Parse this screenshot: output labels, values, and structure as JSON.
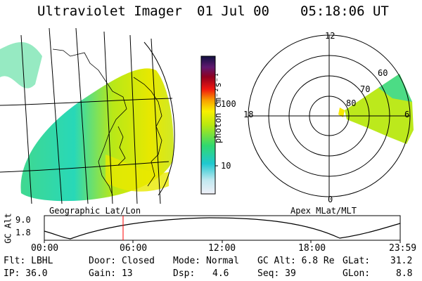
{
  "header": {
    "instrument": "Ultraviolet Imager",
    "date": "01 Jul 00",
    "time": "05:18:06 UT"
  },
  "colorbar": {
    "unit_label": "photon cm⁻²s⁻¹",
    "ticks": [
      "100",
      "10"
    ],
    "scale": "log"
  },
  "projection_labels": {
    "left": "Geographic Lat/Lon",
    "right": "Apex MLat/MLT"
  },
  "polar_plot": {
    "mlt_labels": [
      "12",
      "18",
      "6",
      "0"
    ],
    "mlat_labels": [
      "60",
      "70",
      "80"
    ]
  },
  "altitude_plot": {
    "ylabel": "GC Alt",
    "yticks": [
      "9.0",
      "1.8"
    ],
    "time_ticks": [
      "00:00",
      "06:00",
      "12:00",
      "18:00",
      "23:59"
    ],
    "current_time_marker": "05:18",
    "marker_color": "#ff0000"
  },
  "status": {
    "flt": "Flt: LBHL",
    "ip": "IP: 36.0",
    "door": "Door: Closed",
    "gain": "Gain: 13",
    "mode": "Mode: Normal",
    "dsp_label": "Dsp:",
    "dsp_value": "4.6",
    "gc_alt": "GC Alt: 6.8 Re",
    "seq": "Seq: 39",
    "glat_label": "GLat:",
    "glat_value": "31.2",
    "glon_label": "GLon:",
    "glon_value": "8.8"
  }
}
